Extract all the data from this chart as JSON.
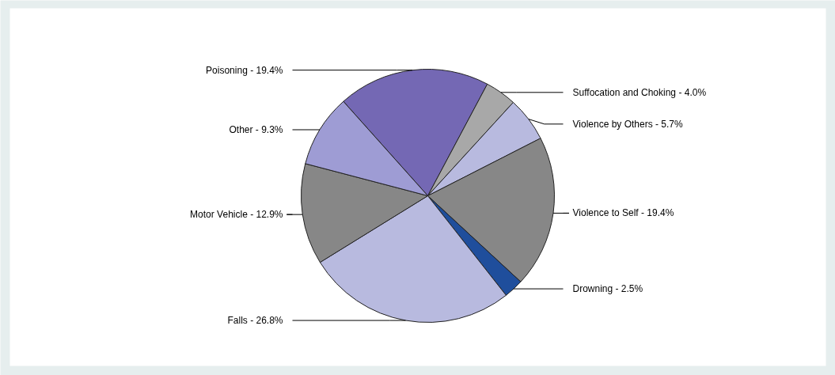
{
  "chart_data": {
    "type": "pie",
    "categories": [
      "Poisoning - 19.4%",
      "Suffocation and Choking - 4.0%",
      "Violence by Others - 5.7%",
      "Violence to Self - 19.4%",
      "Drowning - 2.5%",
      "Falls - 26.8%",
      "Motor Vehicle - 12.9%",
      "Other - 9.3%"
    ],
    "values": [
      19.4,
      4.0,
      5.7,
      19.4,
      2.5,
      26.8,
      12.9,
      9.3
    ],
    "colors": [
      "#7468b4",
      "#a8a8a8",
      "#b8badf",
      "#878787",
      "#1f4e9c",
      "#b8badf",
      "#878787",
      "#9e9cd4"
    ]
  }
}
